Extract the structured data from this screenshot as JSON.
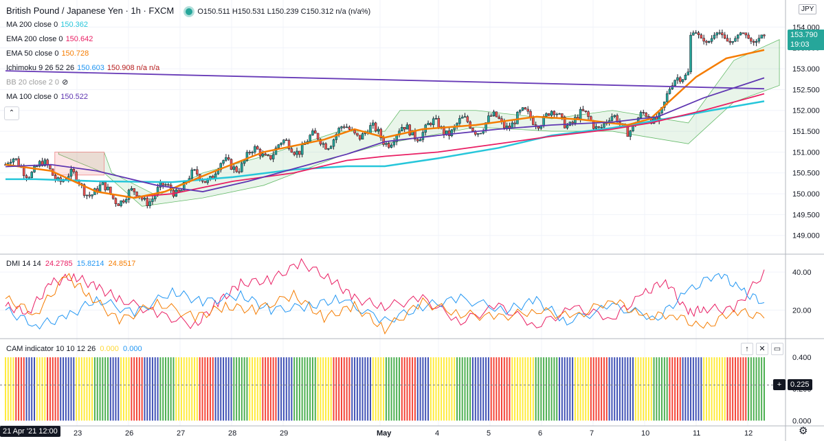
{
  "header": {
    "title": "British Pound / Japanese Yen · 1h · FXCM",
    "ohlc": "O150.511  H150.531  L150.239  C150.312  n/a (n/a%)"
  },
  "indicators": [
    {
      "label": "MA 200 close 0",
      "value": "150.362",
      "value2": "",
      "color": "#26c6da",
      "color2": ""
    },
    {
      "label": "EMA 200 close 0",
      "value": "150.642",
      "value2": "",
      "color": "#e91e63",
      "color2": ""
    },
    {
      "label": "EMA 50 close 0",
      "value": "150.728",
      "value2": "",
      "color": "#f57c00",
      "color2": ""
    },
    {
      "label": "Ichimoku 9 26 52 26",
      "value": "150.603",
      "value2": "150.908  n/a  n/a",
      "color": "#2196f3",
      "color2": "#b71c1c"
    },
    {
      "label": "BB 20 close 2 0",
      "value": "",
      "value2": "",
      "color": "#9e9e9e",
      "color2": ""
    },
    {
      "label": "MA 100 close 0",
      "value": "150.522",
      "value2": "",
      "color": "#5e35b1",
      "color2": ""
    }
  ],
  "dmi": {
    "label": "DMI 14 14",
    "v1": "24.2785",
    "v2": "15.8214",
    "v3": "24.8517",
    "c1": "#e91e63",
    "c2": "#2196f3",
    "c3": "#f57c00"
  },
  "cam": {
    "label": "CAM indicator 10 10 12 26",
    "v1": "0.000",
    "v2": "0.000"
  },
  "currency": "JPY",
  "last_price": {
    "value": "153.790",
    "countdown": "19:03"
  },
  "cam_cursor": "0.225",
  "time_label": "21 Apr '21  12:00",
  "colors": {
    "up": "#26a69a",
    "down": "#ef5350",
    "purple_trend": "#673ab7",
    "cam_green": "#4caf50",
    "cam_red": "#f44336",
    "cam_blue": "#3f51b5",
    "cam_yellow": "#ffeb3b"
  },
  "chart_data": [
    {
      "type": "candlestick",
      "title": "British Pound / Japanese Yen · 1h · FXCM",
      "x_ticks": [
        "23",
        "26",
        "27",
        "28",
        "29",
        "May",
        "4",
        "5",
        "6",
        "7",
        "10",
        "11",
        "12"
      ],
      "y_ticks": [
        149.0,
        149.5,
        150.0,
        150.5,
        151.0,
        151.5,
        152.0,
        152.5,
        153.0,
        153.5,
        154.0
      ],
      "ylim": [
        148.6,
        154.6
      ],
      "last": 153.79,
      "series": [
        {
          "name": "MA 200 close 0",
          "color": "#26c6da",
          "points": [
            [
              0,
              150.35
            ],
            [
              0.04,
              150.35
            ],
            [
              0.12,
              150.3
            ],
            [
              0.22,
              150.28
            ],
            [
              0.3,
              150.4
            ],
            [
              0.38,
              150.58
            ],
            [
              0.45,
              150.66
            ],
            [
              0.5,
              150.66
            ],
            [
              0.57,
              150.85
            ],
            [
              0.65,
              151.1
            ],
            [
              0.72,
              151.4
            ],
            [
              0.8,
              151.58
            ],
            [
              0.88,
              151.83
            ],
            [
              0.93,
              152.0
            ],
            [
              1.0,
              152.22
            ]
          ]
        },
        {
          "name": "EMA 200 close 0",
          "color": "#e91e63",
          "points": [
            [
              0.17,
              149.92
            ],
            [
              0.22,
              150.0
            ],
            [
              0.3,
              150.3
            ],
            [
              0.38,
              150.5
            ],
            [
              0.45,
              150.8
            ],
            [
              0.5,
              150.9
            ],
            [
              0.57,
              151.0
            ],
            [
              0.65,
              151.2
            ],
            [
              0.72,
              151.38
            ],
            [
              0.8,
              151.55
            ],
            [
              0.85,
              151.7
            ],
            [
              0.92,
              152.0
            ],
            [
              1.0,
              152.4
            ]
          ]
        },
        {
          "name": "EMA 50 close 0",
          "color": "#f57c00",
          "points": [
            [
              0,
              150.7
            ],
            [
              0.06,
              150.55
            ],
            [
              0.12,
              150.05
            ],
            [
              0.17,
              149.9
            ],
            [
              0.21,
              150.05
            ],
            [
              0.27,
              150.5
            ],
            [
              0.34,
              151.0
            ],
            [
              0.42,
              151.3
            ],
            [
              0.46,
              151.55
            ],
            [
              0.5,
              151.35
            ],
            [
              0.55,
              151.55
            ],
            [
              0.62,
              151.65
            ],
            [
              0.7,
              151.85
            ],
            [
              0.76,
              151.78
            ],
            [
              0.82,
              151.65
            ],
            [
              0.85,
              151.8
            ],
            [
              0.88,
              152.3
            ],
            [
              0.91,
              152.8
            ],
            [
              0.95,
              153.25
            ],
            [
              1.0,
              153.45
            ]
          ]
        },
        {
          "name": "MA 100 close 0",
          "color": "#5e35b1",
          "points": [
            [
              0,
              150.65
            ],
            [
              0.06,
              150.7
            ],
            [
              0.12,
              150.55
            ],
            [
              0.2,
              150.2
            ],
            [
              0.26,
              150.05
            ],
            [
              0.32,
              150.3
            ],
            [
              0.38,
              150.6
            ],
            [
              0.45,
              150.95
            ],
            [
              0.5,
              151.25
            ],
            [
              0.57,
              151.4
            ],
            [
              0.65,
              151.55
            ],
            [
              0.72,
              151.65
            ],
            [
              0.8,
              151.72
            ],
            [
              0.86,
              151.85
            ],
            [
              0.92,
              152.3
            ],
            [
              1.0,
              152.78
            ]
          ]
        },
        {
          "name": "Trend line",
          "color": "#673ab7",
          "points": [
            [
              0,
              152.95
            ],
            [
              1.0,
              152.52
            ]
          ]
        }
      ]
    },
    {
      "type": "line",
      "title": "DMI 14 14",
      "y_ticks": [
        20.0,
        40.0
      ],
      "ylim": [
        6,
        48
      ],
      "series": [
        {
          "name": "DMI +",
          "color": "#e91e63",
          "points": [
            [
              0,
              22
            ],
            [
              0.03,
              19
            ],
            [
              0.06,
              34
            ],
            [
              0.09,
              38
            ],
            [
              0.12,
              32
            ],
            [
              0.15,
              26
            ],
            [
              0.2,
              18
            ],
            [
              0.25,
              12
            ],
            [
              0.28,
              24
            ],
            [
              0.31,
              34
            ],
            [
              0.35,
              36
            ],
            [
              0.39,
              45
            ],
            [
              0.43,
              36
            ],
            [
              0.46,
              26
            ],
            [
              0.5,
              22
            ],
            [
              0.55,
              26
            ],
            [
              0.6,
              14
            ],
            [
              0.65,
              22
            ],
            [
              0.7,
              12
            ],
            [
              0.75,
              21
            ],
            [
              0.8,
              16
            ],
            [
              0.84,
              28
            ],
            [
              0.87,
              36
            ],
            [
              0.9,
              18
            ],
            [
              0.92,
              21
            ],
            [
              0.96,
              20
            ],
            [
              1.0,
              40
            ],
            [
              1.05,
              32
            ]
          ]
        },
        {
          "name": "DMI -",
          "color": "#2196f3",
          "points": [
            [
              0,
              20
            ],
            [
              0.04,
              12
            ],
            [
              0.08,
              16
            ],
            [
              0.12,
              26
            ],
            [
              0.17,
              18
            ],
            [
              0.22,
              30
            ],
            [
              0.26,
              24
            ],
            [
              0.31,
              28
            ],
            [
              0.35,
              20
            ],
            [
              0.4,
              22
            ],
            [
              0.44,
              26
            ],
            [
              0.5,
              14
            ],
            [
              0.55,
              22
            ],
            [
              0.6,
              26
            ],
            [
              0.66,
              20
            ],
            [
              0.7,
              25
            ],
            [
              0.74,
              14
            ],
            [
              0.8,
              22
            ],
            [
              0.86,
              16
            ],
            [
              0.9,
              30
            ],
            [
              0.94,
              40
            ],
            [
              0.97,
              30
            ],
            [
              1.0,
              24
            ],
            [
              1.05,
              17
            ]
          ]
        },
        {
          "name": "ADX",
          "color": "#f57c00",
          "points": [
            [
              0,
              26
            ],
            [
              0.04,
              18
            ],
            [
              0.08,
              38
            ],
            [
              0.11,
              28
            ],
            [
              0.15,
              14
            ],
            [
              0.2,
              24
            ],
            [
              0.25,
              16
            ],
            [
              0.29,
              22
            ],
            [
              0.33,
              20
            ],
            [
              0.38,
              28
            ],
            [
              0.42,
              16
            ],
            [
              0.46,
              22
            ],
            [
              0.5,
              10
            ],
            [
              0.55,
              24
            ],
            [
              0.6,
              18
            ],
            [
              0.65,
              16
            ],
            [
              0.7,
              20
            ],
            [
              0.75,
              16
            ],
            [
              0.8,
              26
            ],
            [
              0.84,
              16
            ],
            [
              0.88,
              18
            ],
            [
              0.92,
              10
            ],
            [
              0.96,
              20
            ],
            [
              1.0,
              16
            ],
            [
              1.05,
              20
            ]
          ]
        }
      ]
    },
    {
      "type": "bar",
      "title": "CAM indicator 10 10 12 26",
      "y_ticks": [
        0.0,
        0.2,
        0.4
      ],
      "ylim": [
        -0.02,
        0.5
      ],
      "bar_value": 0.4,
      "colors_sequence": "yyrrbbyyrrrbbbyyyygggbbyyrrrbbbgggyyyyyrrrbbbbgggyyyrrrbbbgggggyyyrrrrbbbbyyygggrrrbbbyyyyygggbbbbrrrryyyyygggggbbbyyyrrrrbbbbbyyyygggrrrbbbbyyyyyrrrrgggg"
    }
  ]
}
